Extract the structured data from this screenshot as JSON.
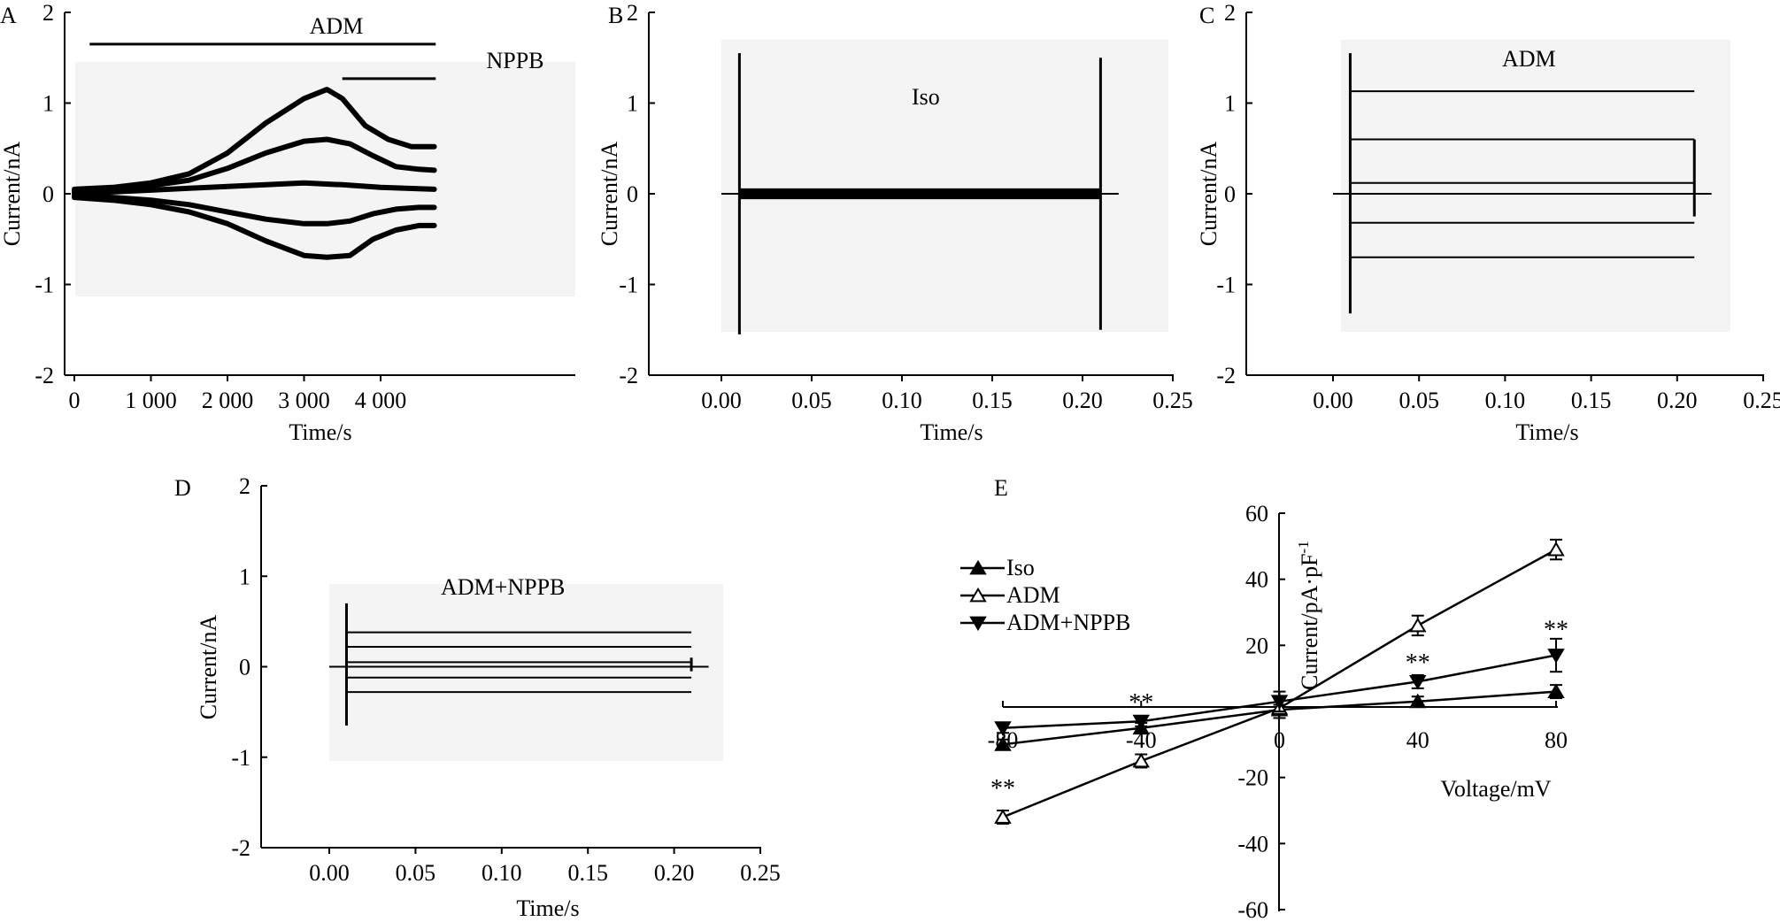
{
  "figure": {
    "colors": {
      "ink": "#000000",
      "trace_bg": "#f4f4f4",
      "background": "#ffffff"
    }
  },
  "chart_data": [
    {
      "panel": "A",
      "type": "line",
      "xlabel": "Time/s",
      "ylabel": "Current/nA",
      "xlim": [
        -100,
        4800
      ],
      "ylim": [
        -2,
        2
      ],
      "xticks": [
        0,
        1000,
        2000,
        3000,
        4000
      ],
      "xtick_labels": [
        "0",
        "1 000",
        "2 000",
        "3 000",
        "4 000"
      ],
      "yticks": [
        -2,
        -1,
        0,
        1,
        2
      ],
      "annotations": [
        {
          "text": "ADM",
          "x_start": 200,
          "x_end": 4720,
          "y": 1.65
        },
        {
          "text": "NPPB",
          "x_start": 3500,
          "x_end": 4720,
          "y": 1.27
        }
      ],
      "series": [
        {
          "x": [
            0,
            500,
            1000,
            1500,
            2000,
            2500,
            3000,
            3300,
            3500,
            3800,
            4100,
            4400,
            4700
          ],
          "values": [
            0.05,
            0.07,
            0.12,
            0.22,
            0.45,
            0.78,
            1.05,
            1.15,
            1.05,
            0.75,
            0.6,
            0.52,
            0.52
          ]
        },
        {
          "x": [
            0,
            500,
            1000,
            1500,
            2000,
            2500,
            3000,
            3300,
            3600,
            3900,
            4200,
            4500,
            4700
          ],
          "values": [
            0.03,
            0.05,
            0.09,
            0.15,
            0.28,
            0.45,
            0.58,
            0.6,
            0.55,
            0.42,
            0.3,
            0.27,
            0.26
          ]
        },
        {
          "x": [
            0,
            500,
            1000,
            1500,
            2000,
            2500,
            3000,
            3500,
            4000,
            4700
          ],
          "values": [
            0.01,
            0.02,
            0.04,
            0.06,
            0.08,
            0.1,
            0.12,
            0.1,
            0.07,
            0.05
          ]
        },
        {
          "x": [
            0,
            500,
            1000,
            1500,
            2000,
            2500,
            3000,
            3300,
            3600,
            3900,
            4200,
            4500,
            4700
          ],
          "values": [
            -0.02,
            -0.04,
            -0.07,
            -0.12,
            -0.2,
            -0.28,
            -0.33,
            -0.33,
            -0.3,
            -0.22,
            -0.17,
            -0.15,
            -0.15
          ]
        },
        {
          "x": [
            0,
            500,
            1000,
            1500,
            2000,
            2500,
            3000,
            3300,
            3600,
            3900,
            4200,
            4500,
            4700
          ],
          "values": [
            -0.04,
            -0.07,
            -0.12,
            -0.2,
            -0.33,
            -0.52,
            -0.68,
            -0.7,
            -0.68,
            -0.5,
            -0.4,
            -0.35,
            -0.35
          ]
        }
      ]
    },
    {
      "panel": "B",
      "type": "line",
      "xlabel": "Time/s",
      "ylabel": "Current/nA",
      "annotation": "Iso",
      "xlim": [
        -0.04,
        0.25
      ],
      "ylim": [
        -2,
        2
      ],
      "xticks": [
        0,
        0.05,
        0.1,
        0.15,
        0.2,
        0.25
      ],
      "xtick_labels": [
        "0.00",
        "0.05",
        "0.10",
        "0.15",
        "0.20",
        "0.25"
      ],
      "yticks": [
        -2,
        -1,
        0,
        1,
        2
      ],
      "step": {
        "start": 0.01,
        "end": 0.21,
        "trace_end": 0.22
      },
      "levels": [
        0.04,
        0.02,
        0.0,
        -0.02,
        -0.04
      ],
      "transients": {
        "on_peak": 1.55,
        "on_trough": -1.55,
        "off_peak": 1.5,
        "off_trough": -1.5
      }
    },
    {
      "panel": "C",
      "type": "line",
      "xlabel": "Time/s",
      "ylabel": "Current/nA",
      "annotation": "ADM",
      "xlim": [
        -0.04,
        0.25
      ],
      "ylim": [
        -2,
        2
      ],
      "xticks": [
        0,
        0.05,
        0.1,
        0.15,
        0.2,
        0.25
      ],
      "xtick_labels": [
        "0.00",
        "0.05",
        "0.10",
        "0.15",
        "0.20",
        "0.25"
      ],
      "yticks": [
        -2,
        -1,
        0,
        1,
        2
      ],
      "step": {
        "start": 0.01,
        "end": 0.21,
        "trace_end": 0.22
      },
      "levels": [
        1.13,
        0.6,
        0.12,
        -0.32,
        -0.7
      ],
      "transients": {
        "on_peak": 1.55,
        "on_trough": -1.32,
        "off_peak": 0.6,
        "off_trough": -0.25
      }
    },
    {
      "panel": "D",
      "type": "line",
      "xlabel": "Time/s",
      "ylabel": "Current/nA",
      "annotation": "ADM+NPPB",
      "xlim": [
        -0.04,
        0.25
      ],
      "ylim": [
        -2,
        2
      ],
      "xticks": [
        0,
        0.05,
        0.1,
        0.15,
        0.2,
        0.25
      ],
      "xtick_labels": [
        "0.00",
        "0.05",
        "0.10",
        "0.15",
        "0.20",
        "0.25"
      ],
      "yticks": [
        -2,
        -1,
        0,
        1,
        2
      ],
      "step": {
        "start": 0.01,
        "end": 0.21,
        "trace_end": 0.22
      },
      "levels": [
        0.38,
        0.22,
        0.05,
        -0.12,
        -0.28
      ],
      "transients": {
        "on_peak": 0.7,
        "on_trough": -0.65,
        "off_peak": 0.1,
        "off_trough": -0.05
      }
    },
    {
      "panel": "E",
      "type": "line",
      "xlabel": "Voltage/mV",
      "ylabel": "Current/pA·pF",
      "ylabel_superscript": "-1",
      "xlim": [
        -80,
        80
      ],
      "ylim": [
        -60,
        60
      ],
      "xticks": [
        -80,
        -40,
        0,
        40,
        80
      ],
      "yticks": [
        -60,
        -40,
        -20,
        0,
        20,
        40,
        60
      ],
      "legend_position": "top-left",
      "x": [
        -80,
        -40,
        0,
        40,
        80
      ],
      "series": [
        {
          "name": "Iso",
          "marker": "triangle-up-filled",
          "values": [
            -10,
            -5,
            0.5,
            3,
            6
          ],
          "err": [
            1.5,
            1.5,
            1.5,
            1.5,
            2
          ]
        },
        {
          "name": "ADM",
          "marker": "triangle-up-open",
          "values": [
            -32,
            -15,
            1,
            26,
            49
          ],
          "err": [
            2,
            2,
            3,
            3,
            3
          ]
        },
        {
          "name": "ADM+NPPB",
          "marker": "triangle-down-filled",
          "values": [
            -5,
            -3,
            3,
            9,
            17
          ],
          "err": [
            1.5,
            1.5,
            3,
            2,
            5
          ]
        }
      ],
      "significance": [
        {
          "x": -80,
          "y": -23,
          "text": "**"
        },
        {
          "x": -40,
          "y": 3,
          "text": "**"
        },
        {
          "x": 40,
          "y": 15,
          "text": "**"
        },
        {
          "x": 80,
          "y": 25,
          "text": "**"
        }
      ]
    }
  ]
}
